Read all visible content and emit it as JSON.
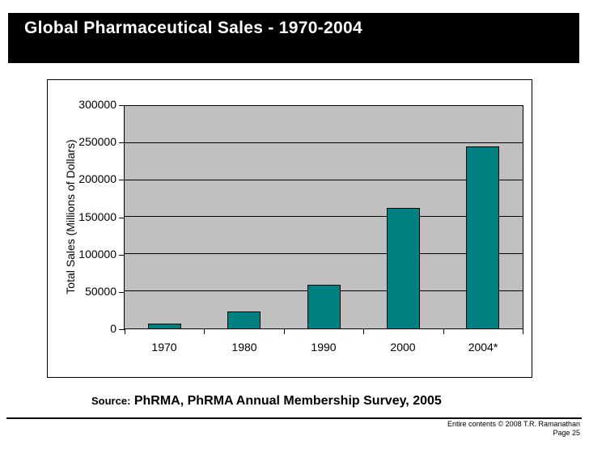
{
  "title_bar": {
    "title": "Global Pharmaceutical Sales - 1970-2004"
  },
  "chart_data": {
    "type": "bar",
    "title": "",
    "categories": [
      "1970",
      "1980",
      "1990",
      "2000",
      "2004*"
    ],
    "values": [
      7000,
      23000,
      59000,
      162000,
      245000
    ],
    "xlabel": "",
    "ylabel": "Total Sales (Millions of Dollars)",
    "ylim": [
      0,
      300000
    ],
    "yticks": [
      0,
      50000,
      100000,
      150000,
      200000,
      250000,
      300000
    ],
    "ytick_labels": [
      "0",
      "50000",
      "100000",
      "150000",
      "200000",
      "250000",
      "300000"
    ],
    "grid": true,
    "legend": false,
    "bar_color": "#008080",
    "plot_bg_color": "#C0C0C0"
  },
  "source": {
    "prefix": "Source:",
    "text": " PhRMA, PhRMA Annual Membership Survey, 2005"
  },
  "footer": {
    "copyright": "Entire contents © 2008 T.R. Ramanathan",
    "page": "Page 25"
  }
}
